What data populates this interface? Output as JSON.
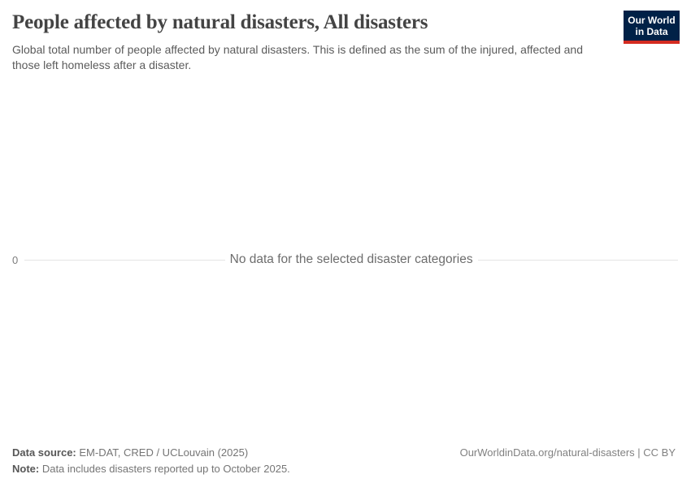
{
  "header": {
    "title": "People affected by natural disasters, All disasters",
    "subtitle": "Global total number of people affected by natural disasters. This is defined as the sum of the injured, affected and those left homeless after a disaster."
  },
  "logo": {
    "line1": "Our World",
    "line2": "in Data"
  },
  "plot": {
    "y_tick": "0",
    "no_data_message": "No data for the selected disaster categories"
  },
  "footer": {
    "source_label": "Data source:",
    "source_text": " EM-DAT, CRED / UCLouvain (2025)",
    "note_label": "Note:",
    "note_text": " Data includes disasters reported up to October 2025.",
    "link": "OurWorldinData.org/natural-disasters | CC BY"
  },
  "colors": {
    "logo_background": "#002147",
    "logo_stripe": "#d42b21",
    "gridline": "#e4e4e4",
    "title_text": "#444444",
    "subtitle_text": "#5b5b5b",
    "message_text": "#6d6d6d",
    "footer_text": "#757575"
  },
  "chart_data": {
    "type": "line",
    "title": "People affected by natural disasters, All disasters",
    "subtitle": "Global total number of people affected by natural disasters. This is defined as the sum of the injured, affected and those left homeless after a disaster.",
    "categories": [],
    "series": [],
    "yticks": [
      "0"
    ],
    "ylim": [
      0,
      null
    ],
    "grid": true,
    "legend": "none",
    "annotations": [
      "No data for the selected disaster categories"
    ],
    "source": "EM-DAT, CRED / UCLouvain (2025)",
    "note": "Data includes disasters reported up to October 2025."
  }
}
